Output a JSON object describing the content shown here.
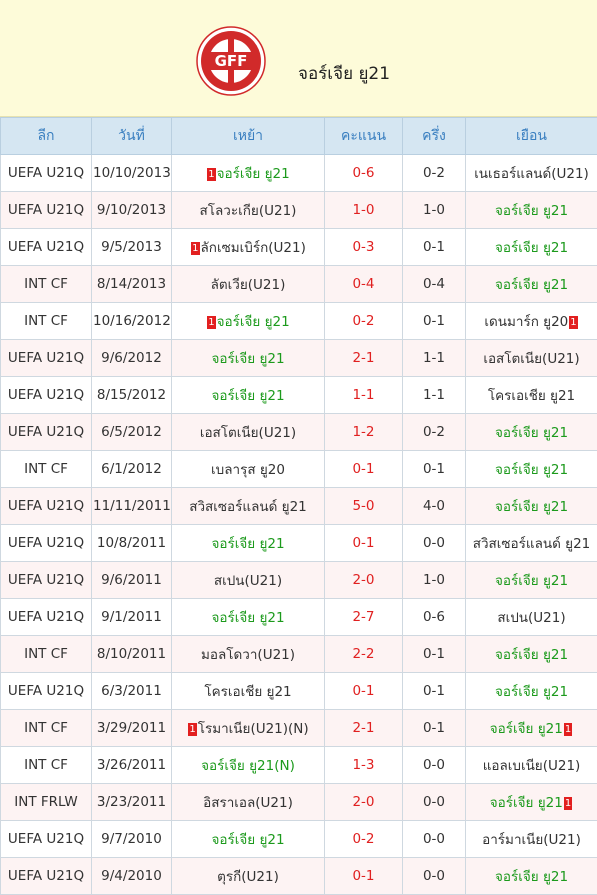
{
  "header": {
    "title": "จอร์เจีย ยู21",
    "logo_text": "GFF"
  },
  "columns": [
    "ลีก",
    "วันที่",
    "เหย้า",
    "คะแนน",
    "ครึ่ง",
    "เยือน"
  ],
  "colors": {
    "accent_green": "#1c9a1c",
    "score_red": "#e02020",
    "header_bg": "#d5e6f2"
  },
  "matches": [
    {
      "league": "UEFA U21Q",
      "date": "10/10/2013",
      "home": "จอร์เจีย ยู21",
      "home_green": true,
      "home_red": "1",
      "away": "เนเธอร์แลนด์(U21)",
      "away_green": false,
      "score": "0-6",
      "half": "0-2"
    },
    {
      "league": "UEFA U21Q",
      "date": "9/10/2013",
      "home": "สโลวะเกีย(U21)",
      "home_green": false,
      "away": "จอร์เจีย ยู21",
      "away_green": true,
      "score": "1-0",
      "half": "1-0"
    },
    {
      "league": "UEFA U21Q",
      "date": "9/5/2013",
      "home": "ลักเซมเบิร์ก(U21)",
      "home_green": false,
      "home_red": "1",
      "away": "จอร์เจีย ยู21",
      "away_green": true,
      "score": "0-3",
      "half": "0-1"
    },
    {
      "league": "INT CF",
      "date": "8/14/2013",
      "home": "ลัตเวีย(U21)",
      "home_green": false,
      "away": "จอร์เจีย ยู21",
      "away_green": true,
      "score": "0-4",
      "half": "0-4"
    },
    {
      "league": "INT CF",
      "date": "10/16/2012",
      "home": "จอร์เจีย ยู21",
      "home_green": true,
      "home_red": "1",
      "away": "เดนมาร์ก ยู20",
      "away_green": false,
      "away_red": "1",
      "score": "0-2",
      "half": "0-1"
    },
    {
      "league": "UEFA U21Q",
      "date": "9/6/2012",
      "home": "จอร์เจีย ยู21",
      "home_green": true,
      "away": "เอสโตเนีย(U21)",
      "away_green": false,
      "score": "2-1",
      "half": "1-1"
    },
    {
      "league": "UEFA U21Q",
      "date": "8/15/2012",
      "home": "จอร์เจีย ยู21",
      "home_green": true,
      "away": "โครเอเชีย ยู21",
      "away_green": false,
      "score": "1-1",
      "half": "1-1"
    },
    {
      "league": "UEFA U21Q",
      "date": "6/5/2012",
      "home": "เอสโตเนีย(U21)",
      "home_green": false,
      "away": "จอร์เจีย ยู21",
      "away_green": true,
      "score": "1-2",
      "half": "0-2"
    },
    {
      "league": "INT CF",
      "date": "6/1/2012",
      "home": "เบลารุส ยู20",
      "home_green": false,
      "away": "จอร์เจีย ยู21",
      "away_green": true,
      "score": "0-1",
      "half": "0-1"
    },
    {
      "league": "UEFA U21Q",
      "date": "11/11/2011",
      "home": "สวิสเซอร์แลนด์ ยู21",
      "home_green": false,
      "away": "จอร์เจีย ยู21",
      "away_green": true,
      "score": "5-0",
      "half": "4-0"
    },
    {
      "league": "UEFA U21Q",
      "date": "10/8/2011",
      "home": "จอร์เจีย ยู21",
      "home_green": true,
      "away": "สวิสเซอร์แลนด์ ยู21",
      "away_green": false,
      "score": "0-1",
      "half": "0-0"
    },
    {
      "league": "UEFA U21Q",
      "date": "9/6/2011",
      "home": "สเปน(U21)",
      "home_green": false,
      "away": "จอร์เจีย ยู21",
      "away_green": true,
      "score": "2-0",
      "half": "1-0"
    },
    {
      "league": "UEFA U21Q",
      "date": "9/1/2011",
      "home": "จอร์เจีย ยู21",
      "home_green": true,
      "away": "สเปน(U21)",
      "away_green": false,
      "score": "2-7",
      "half": "0-6"
    },
    {
      "league": "INT CF",
      "date": "8/10/2011",
      "home": "มอลโดวา(U21)",
      "home_green": false,
      "away": "จอร์เจีย ยู21",
      "away_green": true,
      "score": "2-2",
      "half": "0-1"
    },
    {
      "league": "UEFA U21Q",
      "date": "6/3/2011",
      "home": "โครเอเชีย ยู21",
      "home_green": false,
      "away": "จอร์เจีย ยู21",
      "away_green": true,
      "score": "0-1",
      "half": "0-1"
    },
    {
      "league": "INT CF",
      "date": "3/29/2011",
      "home": "โรมาเนีย(U21)(N)",
      "home_green": false,
      "home_red": "1",
      "away": "จอร์เจีย ยู21",
      "away_green": true,
      "away_red": "1",
      "score": "2-1",
      "half": "0-1"
    },
    {
      "league": "INT CF",
      "date": "3/26/2011",
      "home": "จอร์เจีย ยู21(N)",
      "home_green": true,
      "away": "แอลเบเนีย(U21)",
      "away_green": false,
      "score": "1-3",
      "half": "0-0"
    },
    {
      "league": "INT FRLW",
      "date": "3/23/2011",
      "home": "อิสราเอล(U21)",
      "home_green": false,
      "away": "จอร์เจีย ยู21",
      "away_green": true,
      "away_red": "1",
      "score": "2-0",
      "half": "0-0"
    },
    {
      "league": "UEFA U21Q",
      "date": "9/7/2010",
      "home": "จอร์เจีย ยู21",
      "home_green": true,
      "away": "อาร์มาเนีย(U21)",
      "away_green": false,
      "score": "0-2",
      "half": "0-0"
    },
    {
      "league": "UEFA U21Q",
      "date": "9/4/2010",
      "home": "ตุรกี(U21)",
      "home_green": false,
      "away": "จอร์เจีย ยู21",
      "away_green": true,
      "score": "0-1",
      "half": "0-0"
    }
  ]
}
